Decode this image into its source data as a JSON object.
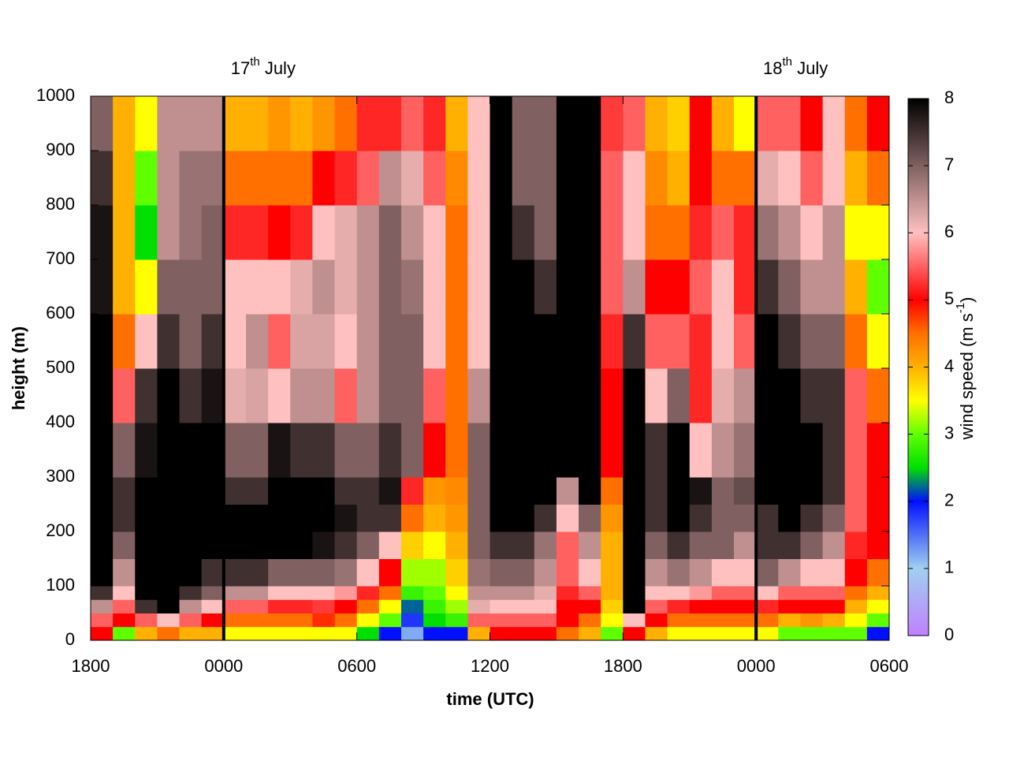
{
  "chart_data": {
    "type": "heatmap",
    "x_label": "time (UTC)",
    "y_label": "height (m)",
    "colorbar_label": [
      "wind speed (m s",
      "-1",
      ")"
    ],
    "annotations": [
      {
        "x": 6,
        "label": [
          "17",
          "th",
          " July"
        ]
      },
      {
        "x": 30,
        "label": [
          "18",
          "th",
          " July"
        ]
      }
    ],
    "xlim": [
      0,
      36
    ],
    "xticks": [
      {
        "value": 0,
        "label": "1800"
      },
      {
        "value": 6,
        "label": "0000"
      },
      {
        "value": 12,
        "label": "0600"
      },
      {
        "value": 18,
        "label": "1200"
      },
      {
        "value": 24,
        "label": "1800"
      },
      {
        "value": 30,
        "label": "0000"
      },
      {
        "value": 36,
        "label": "0600"
      }
    ],
    "ylim": [
      0,
      1000
    ],
    "yticks": [
      0,
      100,
      200,
      300,
      400,
      500,
      600,
      700,
      800,
      900,
      1000
    ],
    "zlim": [
      0,
      8
    ],
    "zticks": [
      0,
      1,
      2,
      3,
      4,
      5,
      6,
      7,
      8
    ],
    "colorscale": [
      [
        0,
        "#c080ff"
      ],
      [
        1,
        "#a0d0f0"
      ],
      [
        2,
        "#0010ff"
      ],
      [
        2.5,
        "#00e000"
      ],
      [
        3,
        "#60ff00"
      ],
      [
        3.5,
        "#ffff00"
      ],
      [
        4,
        "#ffb000"
      ],
      [
        4.5,
        "#ff7000"
      ],
      [
        5,
        "#ff0000"
      ],
      [
        5.5,
        "#ff6060"
      ],
      [
        6,
        "#ffc0c0"
      ],
      [
        7,
        "#806060"
      ],
      [
        8,
        "#000000"
      ]
    ],
    "xbins": [
      0,
      1,
      2,
      3,
      4,
      5,
      6,
      7,
      8,
      9,
      10,
      11,
      12,
      13,
      14,
      15,
      16,
      17,
      18,
      19,
      20,
      21,
      22,
      23,
      24,
      25,
      26,
      27,
      28,
      29,
      30,
      31,
      32,
      33,
      34,
      35,
      36
    ],
    "ybins": [
      0,
      25,
      50,
      75,
      100,
      150,
      200,
      250,
      300,
      400,
      500,
      600,
      700,
      800,
      900,
      1000
    ],
    "values": [
      [
        5,
        5.5,
        6.5,
        7.5,
        8,
        8,
        8,
        8,
        8,
        8,
        8,
        7.8,
        7.8,
        7.5,
        7
      ],
      [
        3,
        5,
        5.5,
        6,
        6.5,
        7,
        7.5,
        7.5,
        7,
        5.5,
        4.5,
        4,
        4,
        4,
        4
      ],
      [
        4,
        5.5,
        7.5,
        8,
        8,
        8,
        8,
        8,
        7.8,
        7.5,
        6,
        3.5,
        2.5,
        3,
        3.5
      ],
      [
        4.5,
        6,
        8,
        8,
        8,
        8,
        8,
        8,
        8,
        8,
        7.5,
        7,
        6.5,
        6.5,
        6.5
      ],
      [
        4,
        5.5,
        6.5,
        7.5,
        8,
        8,
        8,
        8,
        8,
        7.5,
        7,
        7,
        6.8,
        6.8,
        6.5
      ],
      [
        4,
        5,
        6,
        7,
        7.5,
        8,
        8,
        8,
        8,
        7.8,
        7.5,
        7,
        7,
        6.8,
        6.5
      ],
      [
        3.5,
        4.5,
        5.5,
        6.5,
        7.5,
        8,
        8,
        7.5,
        7,
        6.2,
        6,
        6,
        5.2,
        4.5,
        4
      ],
      [
        3.5,
        4.5,
        5.5,
        6.5,
        7.5,
        8,
        8,
        7.5,
        7,
        6.3,
        6.5,
        6,
        5.2,
        4.5,
        4
      ],
      [
        3.5,
        4.5,
        5.2,
        6,
        7,
        8,
        8,
        8,
        7.8,
        6,
        5.5,
        6,
        5,
        4.5,
        4.2
      ],
      [
        3.5,
        4.5,
        5.2,
        6,
        7,
        8,
        8,
        8,
        7.5,
        6.5,
        6.3,
        6.2,
        5.2,
        4.5,
        4
      ],
      [
        3.5,
        4.8,
        5.3,
        6,
        7,
        7.8,
        8,
        8,
        7.5,
        6.5,
        6.3,
        6.5,
        6,
        5,
        4.2
      ],
      [
        3.5,
        4.5,
        5,
        5.8,
        6.8,
        7.5,
        7.8,
        7.5,
        7,
        5.5,
        6,
        6.2,
        6.2,
        5.2,
        4.5
      ],
      [
        2.5,
        3.5,
        4.5,
        5.2,
        6,
        7,
        7.5,
        7.5,
        7,
        6.5,
        6.5,
        6.5,
        6.5,
        5.5,
        5.2
      ],
      [
        2,
        3,
        3.5,
        4.5,
        5,
        6,
        7.5,
        7.8,
        7.5,
        7,
        7,
        7,
        7,
        6.5,
        5.2
      ],
      [
        1.2,
        1.8,
        2.2,
        2.8,
        3.2,
        3.8,
        4.5,
        5.2,
        7,
        7,
        7,
        6.8,
        6.5,
        6.2,
        5.5
      ],
      [
        2,
        2.5,
        2.8,
        3,
        3.2,
        3.5,
        4,
        4.2,
        5,
        5.5,
        6,
        6,
        6,
        5.5,
        5.2
      ],
      [
        2,
        2.8,
        3.2,
        3.5,
        3.8,
        4,
        4.2,
        4.3,
        4.5,
        4.5,
        4.5,
        4.5,
        4.5,
        4.3,
        4
      ],
      [
        4,
        5.5,
        6.2,
        6.5,
        6.8,
        7,
        7,
        7,
        7,
        6.5,
        6,
        6,
        6,
        6,
        6
      ],
      [
        5,
        5.5,
        6,
        6.5,
        7,
        7.5,
        8,
        8,
        8,
        8,
        8,
        8,
        8,
        8,
        8
      ],
      [
        5,
        5.5,
        6,
        6.5,
        7,
        7.5,
        8,
        8,
        8,
        8,
        8,
        8,
        7.5,
        7,
        7
      ],
      [
        5,
        5.5,
        6,
        6.2,
        6.5,
        6.8,
        7.5,
        8,
        8,
        8,
        8,
        7.5,
        7,
        7,
        7
      ],
      [
        4.5,
        5,
        5,
        5.2,
        5.5,
        5.5,
        6,
        6.5,
        8,
        8,
        8,
        8,
        8,
        8,
        8
      ],
      [
        4,
        4.5,
        5,
        5.5,
        6,
        6.5,
        7,
        8,
        8,
        8,
        8,
        8,
        8,
        8,
        8
      ],
      [
        3,
        3.5,
        3.8,
        4,
        4,
        4,
        4.2,
        4.5,
        5,
        5,
        5.2,
        5.5,
        5.5,
        5.5,
        5.3
      ],
      [
        5,
        6,
        8,
        8,
        8,
        8,
        8,
        8,
        8,
        8,
        7.5,
        6.5,
        6,
        6,
        5.5
      ],
      [
        4,
        5,
        5.5,
        6,
        6.5,
        7,
        7.5,
        7.5,
        7.5,
        6,
        5.5,
        5,
        4.5,
        4.3,
        4
      ],
      [
        3.5,
        4.5,
        5.2,
        6,
        6.8,
        7.5,
        8,
        8,
        8,
        7,
        5.5,
        5,
        4.5,
        4,
        3.8
      ],
      [
        3.5,
        4.5,
        5,
        5.8,
        6.5,
        7,
        7.5,
        7.8,
        6,
        5.2,
        5.2,
        5.5,
        5.2,
        5,
        5
      ],
      [
        3.5,
        4.5,
        5,
        5.5,
        6,
        7,
        7,
        7,
        6.5,
        6.2,
        6,
        6,
        5.5,
        4.5,
        4
      ],
      [
        3.5,
        4.5,
        5,
        5.5,
        6,
        6.5,
        7,
        7.2,
        6.8,
        6.5,
        5.5,
        5.2,
        5.2,
        4.5,
        3.5
      ],
      [
        3.5,
        4.5,
        5.2,
        6,
        7,
        7.5,
        7.5,
        8,
        8,
        8,
        8,
        7.5,
        6.8,
        6.2,
        5.5
      ],
      [
        3,
        4,
        5,
        5.5,
        6.5,
        7.5,
        8,
        8,
        8,
        8,
        7.5,
        7,
        6.5,
        6,
        5.5
      ],
      [
        3,
        4.2,
        5,
        5.5,
        6,
        7,
        7.5,
        8,
        8,
        7.5,
        7,
        6.5,
        6,
        5.5,
        5
      ],
      [
        3,
        4,
        5,
        5.5,
        6,
        6.5,
        7,
        7.5,
        7.5,
        7.5,
        7,
        6.5,
        6.5,
        6,
        6
      ],
      [
        3,
        3.5,
        4,
        4.5,
        5,
        5.2,
        5.5,
        5.5,
        5.5,
        5.5,
        4.5,
        4,
        3.5,
        4,
        4.5
      ],
      [
        2,
        3,
        3.5,
        4,
        4.5,
        5,
        5,
        5,
        5,
        4.5,
        3.5,
        3,
        3.5,
        4.5,
        5
      ]
    ]
  }
}
